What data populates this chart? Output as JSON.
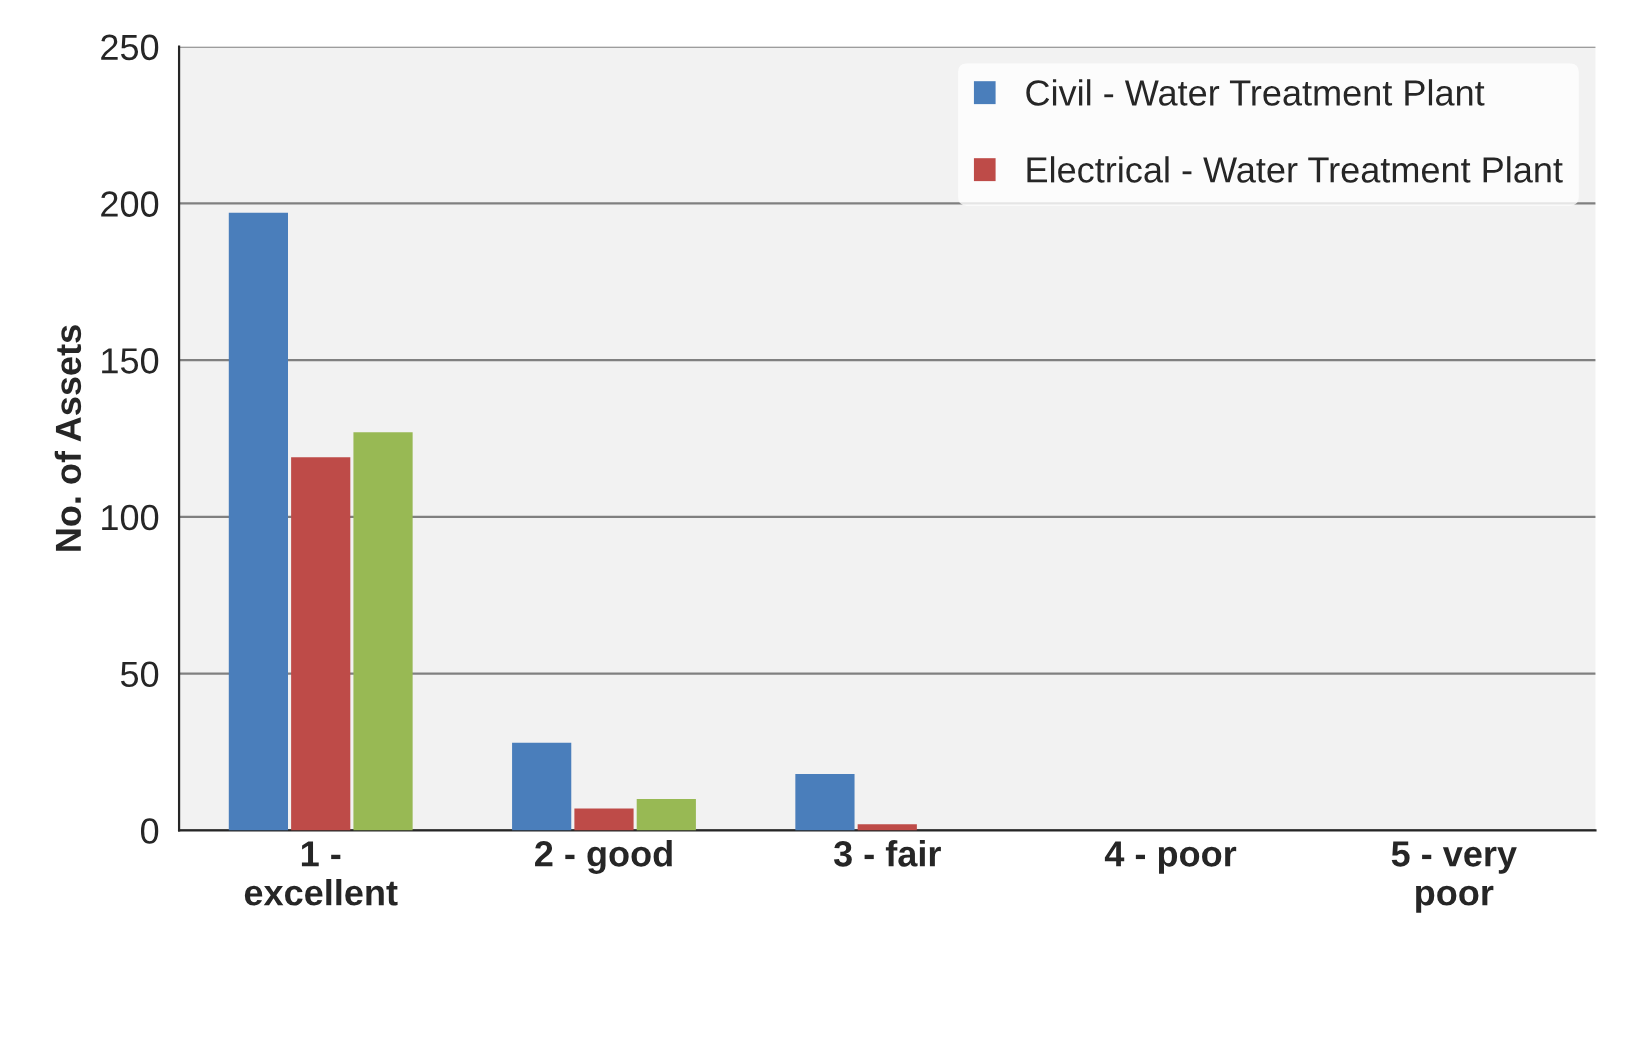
{
  "chart_data": {
    "type": "bar",
    "ylabel": "No. of Assets",
    "categories": [
      "1 -\nexcellent",
      "2 - good",
      "3 - fair",
      "4 - poor",
      "5 - very\npoor"
    ],
    "series": [
      {
        "name": "Civil - Water Treatment Plant",
        "color": "#4a7ebb",
        "values": [
          197,
          28,
          18,
          0,
          0
        ]
      },
      {
        "name": "Electrical - Water Treatment Plant",
        "color": "#be4b48",
        "values": [
          119,
          7,
          2,
          0,
          0
        ]
      },
      {
        "color": "#98b954",
        "values": [
          127,
          10,
          0,
          0,
          0
        ]
      }
    ],
    "ylim": [
      0,
      250
    ],
    "yticks": [
      0,
      50,
      100,
      150,
      200,
      250
    ],
    "grid": "y",
    "legend": "top right"
  }
}
